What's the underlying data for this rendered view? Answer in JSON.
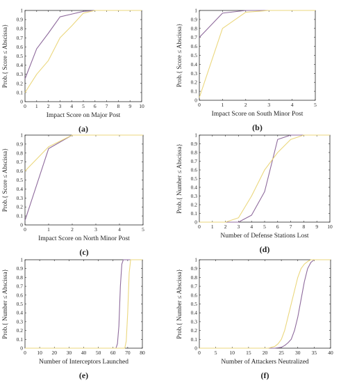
{
  "colors": {
    "purple": "#8e6a9c",
    "yellow": "#ebd77d",
    "axis": "#262626"
  },
  "chart_data": [
    {
      "type": "line",
      "panel_label": "(a)",
      "xlabel": "Impact Score on Major Post",
      "ylabel": "Prob.{ Score ≤ Abscissa}",
      "xlim": [
        0,
        10
      ],
      "ylim": [
        0,
        1
      ],
      "xticks": [
        0,
        1,
        2,
        3,
        4,
        5,
        6,
        7,
        8,
        9,
        10
      ],
      "yticks": [
        0,
        0.1,
        0.2,
        0.3,
        0.4,
        0.5,
        0.6,
        0.7,
        0.8,
        0.9,
        1
      ],
      "series": [
        {
          "color": "#8e6a9c",
          "x": [
            0,
            1,
            2,
            3,
            4,
            5,
            6,
            7,
            8,
            9,
            10
          ],
          "y": [
            0.25,
            0.58,
            0.75,
            0.93,
            0.96,
            0.99,
            1.0,
            1.0,
            1.0,
            1.0,
            1.0
          ]
        },
        {
          "color": "#ebd77d",
          "x": [
            0,
            1,
            2,
            3,
            4,
            5,
            6,
            7,
            8,
            9,
            10
          ],
          "y": [
            0.1,
            0.3,
            0.45,
            0.7,
            0.83,
            0.97,
            1.0,
            1.0,
            1.0,
            1.0,
            1.0
          ]
        }
      ]
    },
    {
      "type": "line",
      "panel_label": "(b)",
      "xlabel": "Impact Score on South Minor Post",
      "ylabel": "Prob.{ Score ≤ Abscissa}",
      "xlim": [
        0,
        5
      ],
      "ylim": [
        0,
        1
      ],
      "xticks": [
        0,
        1,
        2,
        3,
        4,
        5
      ],
      "yticks": [
        0,
        0.1,
        0.2,
        0.3,
        0.4,
        0.5,
        0.6,
        0.7,
        0.8,
        0.9,
        1
      ],
      "series": [
        {
          "color": "#8e6a9c",
          "x": [
            0,
            1,
            2,
            3,
            4,
            5
          ],
          "y": [
            0.7,
            0.97,
            1.0,
            1.0,
            1.0,
            1.0
          ]
        },
        {
          "color": "#ebd77d",
          "x": [
            0,
            1,
            2,
            3,
            4,
            5
          ],
          "y": [
            0.03,
            0.8,
            0.98,
            1.0,
            1.0,
            1.0
          ]
        }
      ]
    },
    {
      "type": "line",
      "panel_label": "(c)",
      "xlabel": "Impact Score on North Minor Post",
      "ylabel": "Prob.{ Score ≤ Abscissa}",
      "xlim": [
        0,
        5
      ],
      "ylim": [
        0,
        1
      ],
      "xticks": [
        0,
        1,
        2,
        3,
        4,
        5
      ],
      "yticks": [
        0,
        0.1,
        0.2,
        0.3,
        0.4,
        0.5,
        0.6,
        0.7,
        0.8,
        0.9,
        1
      ],
      "series": [
        {
          "color": "#8e6a9c",
          "x": [
            0,
            1,
            2,
            3,
            4,
            5
          ],
          "y": [
            0.05,
            0.85,
            1.0,
            1.0,
            1.0,
            1.0
          ]
        },
        {
          "color": "#ebd77d",
          "x": [
            0,
            1,
            2,
            3,
            4,
            5
          ],
          "y": [
            0.6,
            0.87,
            1.0,
            1.0,
            1.0,
            1.0
          ]
        }
      ]
    },
    {
      "type": "line",
      "panel_label": "(d)",
      "xlabel": "Number of Defense Stations Lost",
      "ylabel": "Prob.{ Number ≤ Abscissa}",
      "xlim": [
        0,
        10
      ],
      "ylim": [
        0,
        1
      ],
      "xticks": [
        0,
        1,
        2,
        3,
        4,
        5,
        6,
        7,
        8,
        9,
        10
      ],
      "yticks": [
        0,
        0.1,
        0.2,
        0.3,
        0.4,
        0.5,
        0.6,
        0.7,
        0.8,
        0.9,
        1
      ],
      "series": [
        {
          "color": "#8e6a9c",
          "x": [
            0,
            1,
            2,
            3,
            4,
            5,
            6,
            7,
            8,
            9,
            10
          ],
          "y": [
            0,
            0,
            0,
            0,
            0.08,
            0.35,
            0.95,
            1.0,
            1.0,
            1.0,
            1.0
          ]
        },
        {
          "color": "#ebd77d",
          "x": [
            0,
            1,
            2,
            3,
            4,
            5,
            6,
            7,
            8,
            9,
            10
          ],
          "y": [
            0,
            0,
            0,
            0.05,
            0.3,
            0.6,
            0.8,
            0.95,
            1.0,
            1.0,
            1.0
          ]
        }
      ]
    },
    {
      "type": "line",
      "panel_label": "(e)",
      "xlabel": "Number of Interceptors Launched",
      "ylabel": "Prob.{ Number ≤ Abscissa}",
      "xlim": [
        0,
        80
      ],
      "ylim": [
        0,
        1
      ],
      "xticks": [
        0,
        10,
        20,
        30,
        40,
        50,
        60,
        70,
        80
      ],
      "yticks": [
        0,
        0.1,
        0.2,
        0.3,
        0.4,
        0.5,
        0.6,
        0.7,
        0.8,
        0.9,
        1
      ],
      "series": [
        {
          "color": "#8e6a9c",
          "x": [
            0,
            62,
            63,
            64,
            65,
            66,
            67,
            68,
            80
          ],
          "y": [
            0,
            0,
            0.05,
            0.25,
            0.7,
            0.95,
            1.0,
            1.0,
            1.0
          ]
        },
        {
          "color": "#ebd77d",
          "x": [
            0,
            68,
            69,
            70,
            71,
            72,
            73,
            80
          ],
          "y": [
            0,
            0,
            0.08,
            0.4,
            0.85,
            1.0,
            1.0,
            1.0
          ]
        }
      ]
    },
    {
      "type": "line",
      "panel_label": "(f)",
      "xlabel": "Number of Attackers Neutralized",
      "ylabel": "Prob.{ Number ≤ Abscissa}",
      "xlim": [
        0,
        40
      ],
      "ylim": [
        0,
        1
      ],
      "xticks": [
        0,
        5,
        10,
        15,
        20,
        25,
        30,
        35,
        40
      ],
      "yticks": [
        0,
        0.1,
        0.2,
        0.3,
        0.4,
        0.5,
        0.6,
        0.7,
        0.8,
        0.9,
        1
      ],
      "series": [
        {
          "color": "#8e6a9c",
          "x": [
            0,
            23,
            25,
            26,
            27,
            28,
            29,
            30,
            31,
            32,
            33,
            34,
            35,
            40
          ],
          "y": [
            0,
            0,
            0.01,
            0.03,
            0.06,
            0.1,
            0.2,
            0.35,
            0.55,
            0.75,
            0.9,
            0.97,
            1.0,
            1.0
          ]
        },
        {
          "color": "#ebd77d",
          "x": [
            0,
            21,
            23,
            24,
            25,
            26,
            27,
            28,
            29,
            30,
            31,
            32,
            33,
            34,
            40
          ],
          "y": [
            0,
            0,
            0.02,
            0.05,
            0.1,
            0.2,
            0.35,
            0.5,
            0.65,
            0.8,
            0.9,
            0.95,
            0.98,
            1.0,
            1.0
          ]
        }
      ]
    }
  ]
}
